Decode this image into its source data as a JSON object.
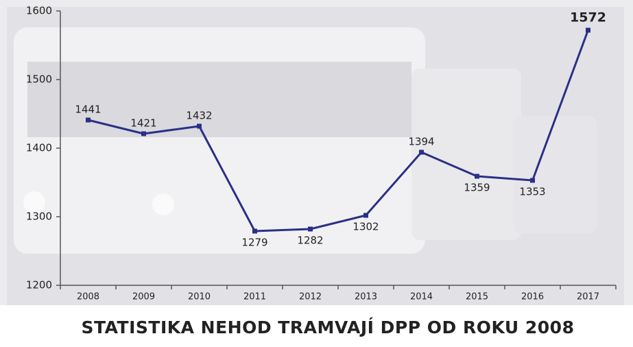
{
  "chart_data": {
    "type": "line",
    "title": "STATISTIKA NEHOD TRAMVAJÍ DPP OD ROKU 2008",
    "categories": [
      "2008",
      "2009",
      "2010",
      "2011",
      "2012",
      "2013",
      "2014",
      "2015",
      "2016",
      "2017"
    ],
    "values": [
      1441,
      1421,
      1432,
      1279,
      1282,
      1302,
      1394,
      1359,
      1353,
      1572
    ],
    "color": "#2b2f86",
    "ylim": [
      1200,
      1600
    ],
    "yticks": [
      1200,
      1300,
      1400,
      1500,
      1600
    ]
  }
}
